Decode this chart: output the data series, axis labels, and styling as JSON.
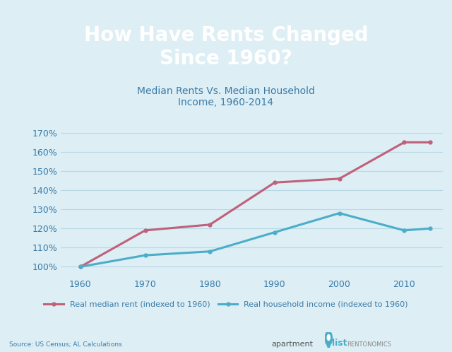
{
  "title_top": "How Have Rents Changed\nSince 1960?",
  "subtitle": "Median Rents Vs. Median Household\nIncome, 1960-2014",
  "top_bg_color": "#3bbfc8",
  "chart_bg_color": "#ddeef5",
  "title_color": "#ffffff",
  "subtitle_color": "#3a7ca8",
  "rent_x": [
    1960,
    1970,
    1980,
    1990,
    2000,
    2010,
    2014
  ],
  "rent_y": [
    100,
    119,
    122,
    144,
    146,
    165,
    165
  ],
  "income_x": [
    1960,
    1970,
    1980,
    1990,
    2000,
    2010,
    2014
  ],
  "income_y": [
    100,
    106,
    108,
    118,
    128,
    119,
    120
  ],
  "rent_color": "#c0607a",
  "income_color": "#4aaec8",
  "yticks": [
    100,
    110,
    120,
    130,
    140,
    150,
    160,
    170
  ],
  "xticks": [
    1960,
    1970,
    1980,
    1990,
    2000,
    2010
  ],
  "xlim": [
    1957,
    2016
  ],
  "ylim": [
    95,
    175
  ],
  "rent_label": "Real median rent (indexed to 1960)",
  "income_label": "Real household income (indexed to 1960)",
  "source_text": "Source: US Census; AL Calculations",
  "grid_color": "#b8d8e5",
  "axis_text_color": "#3a7ca8",
  "title_fontsize": 20,
  "subtitle_fontsize": 10,
  "tick_fontsize": 9,
  "legend_fontsize": 8
}
